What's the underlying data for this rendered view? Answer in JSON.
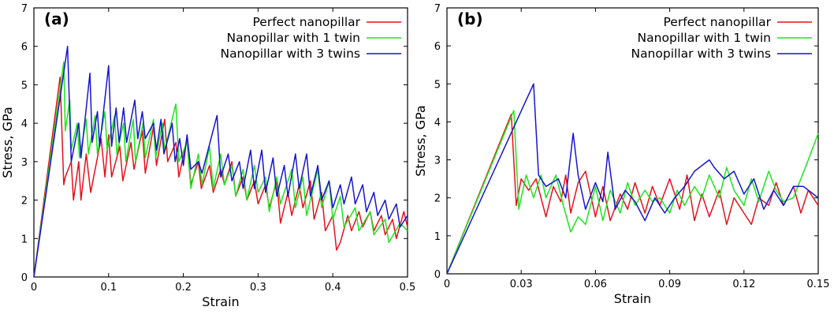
{
  "chart_data": [
    {
      "type": "line",
      "panel_label": "(a)",
      "xlabel": "Strain",
      "ylabel": "Stress, GPa",
      "xlim": [
        0,
        0.5
      ],
      "ylim": [
        0,
        7
      ],
      "xticks": [
        "0",
        "0.1",
        "0.2",
        "0.3",
        "0.4",
        "0.5"
      ],
      "yticks": [
        "0",
        "1",
        "2",
        "3",
        "4",
        "5",
        "6",
        "7"
      ],
      "legend": "top-right",
      "grid": false,
      "series": [
        {
          "name": "Perfect nanopillar",
          "color": "#e8101a",
          "x": [
            0,
            0.035,
            0.04,
            0.042,
            0.05,
            0.053,
            0.06,
            0.063,
            0.07,
            0.076,
            0.09,
            0.095,
            0.1,
            0.104,
            0.115,
            0.119,
            0.13,
            0.134,
            0.145,
            0.149,
            0.16,
            0.164,
            0.175,
            0.179,
            0.19,
            0.194,
            0.205,
            0.21,
            0.22,
            0.224,
            0.235,
            0.24,
            0.25,
            0.255,
            0.265,
            0.27,
            0.28,
            0.285,
            0.295,
            0.3,
            0.31,
            0.315,
            0.325,
            0.33,
            0.34,
            0.345,
            0.355,
            0.36,
            0.37,
            0.375,
            0.385,
            0.39,
            0.4,
            0.405,
            0.41,
            0.42,
            0.425,
            0.435,
            0.44,
            0.45,
            0.455,
            0.465,
            0.47,
            0.48,
            0.485,
            0.495,
            0.5
          ],
          "y": [
            0,
            5.2,
            2.4,
            2.6,
            3.0,
            2.0,
            3.0,
            2.0,
            3.2,
            2.2,
            3.6,
            2.6,
            3.7,
            2.6,
            3.4,
            2.5,
            3.5,
            2.8,
            3.8,
            2.7,
            3.9,
            2.9,
            4.1,
            3.0,
            3.5,
            2.6,
            3.6,
            2.4,
            3.0,
            2.3,
            2.9,
            2.2,
            2.8,
            2.4,
            3.0,
            2.1,
            2.6,
            2.0,
            2.5,
            1.9,
            2.4,
            1.8,
            2.5,
            1.4,
            2.2,
            1.6,
            2.4,
            1.8,
            2.5,
            1.5,
            2.2,
            1.2,
            1.6,
            0.7,
            0.9,
            1.6,
            1.2,
            1.7,
            1.3,
            1.7,
            1.2,
            1.6,
            1.1,
            1.5,
            1.0,
            1.7,
            1.3
          ]
        },
        {
          "name": "Nanopillar with 1 twin",
          "color": "#1ce61c",
          "x": [
            0,
            0.04,
            0.042,
            0.048,
            0.05,
            0.058,
            0.061,
            0.07,
            0.073,
            0.082,
            0.085,
            0.095,
            0.098,
            0.108,
            0.111,
            0.12,
            0.123,
            0.133,
            0.136,
            0.146,
            0.149,
            0.16,
            0.163,
            0.172,
            0.175,
            0.19,
            0.194,
            0.205,
            0.21,
            0.22,
            0.225,
            0.235,
            0.24,
            0.25,
            0.255,
            0.265,
            0.27,
            0.28,
            0.285,
            0.295,
            0.3,
            0.31,
            0.315,
            0.325,
            0.33,
            0.345,
            0.35,
            0.36,
            0.365,
            0.38,
            0.385,
            0.395,
            0.4,
            0.41,
            0.415,
            0.43,
            0.435,
            0.45,
            0.455,
            0.47,
            0.475,
            0.49,
            0.5
          ],
          "y": [
            0,
            5.6,
            3.8,
            4.6,
            3.3,
            4.0,
            3.1,
            4.1,
            3.2,
            4.2,
            3.2,
            4.3,
            3.3,
            4.2,
            3.2,
            4.0,
            3.0,
            4.1,
            3.0,
            4.0,
            3.1,
            4.1,
            3.1,
            4.0,
            3.3,
            4.5,
            3.0,
            3.5,
            2.3,
            3.2,
            2.4,
            3.4,
            2.3,
            3.2,
            2.4,
            2.9,
            2.1,
            2.8,
            2.0,
            2.9,
            2.2,
            2.6,
            1.7,
            2.6,
            1.9,
            2.8,
            1.8,
            2.6,
            1.6,
            2.8,
            1.8,
            2.5,
            1.5,
            2.1,
            1.3,
            1.8,
            1.2,
            1.7,
            1.1,
            1.5,
            0.9,
            1.4,
            1.2
          ]
        },
        {
          "name": "Nanopillar with 3 twins",
          "color": "#1515d0",
          "x": [
            0,
            0.045,
            0.05,
            0.052,
            0.06,
            0.063,
            0.075,
            0.078,
            0.085,
            0.088,
            0.1,
            0.104,
            0.11,
            0.114,
            0.12,
            0.124,
            0.135,
            0.139,
            0.145,
            0.149,
            0.16,
            0.164,
            0.17,
            0.174,
            0.185,
            0.189,
            0.195,
            0.2,
            0.205,
            0.21,
            0.22,
            0.225,
            0.245,
            0.25,
            0.26,
            0.265,
            0.275,
            0.28,
            0.29,
            0.295,
            0.305,
            0.31,
            0.32,
            0.325,
            0.335,
            0.34,
            0.35,
            0.355,
            0.365,
            0.37,
            0.38,
            0.385,
            0.395,
            0.4,
            0.41,
            0.415,
            0.425,
            0.43,
            0.44,
            0.445,
            0.455,
            0.46,
            0.47,
            0.475,
            0.485,
            0.49,
            0.5
          ],
          "y": [
            0,
            6.0,
            3.0,
            3.2,
            4.0,
            3.1,
            5.3,
            3.5,
            4.3,
            3.4,
            5.5,
            3.4,
            4.4,
            3.5,
            4.4,
            3.5,
            4.6,
            3.6,
            4.3,
            3.6,
            4.0,
            3.3,
            4.1,
            3.2,
            4.0,
            3.0,
            3.6,
            2.9,
            3.7,
            2.8,
            3.0,
            2.7,
            4.2,
            2.6,
            3.2,
            2.5,
            3.0,
            2.3,
            3.3,
            2.3,
            3.3,
            2.2,
            3.1,
            2.1,
            2.9,
            2.1,
            3.2,
            2.3,
            3.2,
            2.1,
            2.9,
            2.0,
            2.5,
            1.8,
            2.4,
            1.9,
            2.6,
            1.9,
            2.4,
            1.7,
            2.2,
            1.6,
            2.0,
            1.5,
            1.9,
            1.3,
            1.6
          ]
        }
      ]
    },
    {
      "type": "line",
      "panel_label": "(b)",
      "xlabel": "Strain",
      "ylabel": "Stress, GPa",
      "xlim": [
        0,
        0.15
      ],
      "ylim": [
        0,
        7
      ],
      "xticks": [
        "0",
        "0.03",
        "0.06",
        "0.09",
        "0.12",
        "0.15"
      ],
      "yticks": [
        "0",
        "1",
        "2",
        "3",
        "4",
        "5",
        "6",
        "7"
      ],
      "legend": "top-right",
      "grid": false,
      "series": [
        {
          "name": "Perfect nanopillar",
          "color": "#e8101a",
          "x": [
            0,
            0.026,
            0.028,
            0.03,
            0.033,
            0.036,
            0.04,
            0.043,
            0.046,
            0.048,
            0.05,
            0.053,
            0.056,
            0.06,
            0.063,
            0.066,
            0.07,
            0.073,
            0.076,
            0.08,
            0.083,
            0.086,
            0.09,
            0.094,
            0.097,
            0.1,
            0.103,
            0.106,
            0.11,
            0.113,
            0.116,
            0.12,
            0.123,
            0.126,
            0.13,
            0.133,
            0.136,
            0.14,
            0.143,
            0.146,
            0.15
          ],
          "y": [
            0,
            4.2,
            1.8,
            2.5,
            2.2,
            2.5,
            1.5,
            2.3,
            1.9,
            2.6,
            1.6,
            2.4,
            2.7,
            1.5,
            2.3,
            1.4,
            2.1,
            1.7,
            2.4,
            1.6,
            2.3,
            1.8,
            2.5,
            1.7,
            2.6,
            1.4,
            2.1,
            1.5,
            2.2,
            1.3,
            2.0,
            1.6,
            1.3,
            2.0,
            1.8,
            2.4,
            1.8,
            2.3,
            1.6,
            2.2,
            1.8
          ]
        },
        {
          "name": "Nanopillar with 1 twin",
          "color": "#1ce61c",
          "x": [
            0,
            0.027,
            0.029,
            0.032,
            0.035,
            0.038,
            0.04,
            0.044,
            0.047,
            0.05,
            0.053,
            0.056,
            0.06,
            0.063,
            0.066,
            0.07,
            0.073,
            0.076,
            0.08,
            0.083,
            0.086,
            0.09,
            0.093,
            0.096,
            0.1,
            0.103,
            0.106,
            0.11,
            0.113,
            0.116,
            0.12,
            0.123,
            0.126,
            0.13,
            0.133,
            0.136,
            0.14,
            0.143,
            0.146,
            0.15
          ],
          "y": [
            0,
            4.3,
            1.7,
            2.6,
            2.0,
            2.6,
            2.0,
            2.6,
            1.8,
            1.1,
            1.5,
            1.3,
            2.3,
            1.4,
            2.2,
            1.6,
            2.4,
            1.8,
            2.2,
            1.9,
            2.0,
            1.6,
            2.2,
            1.8,
            2.3,
            2.0,
            2.6,
            2.0,
            2.8,
            2.2,
            1.8,
            2.5,
            1.9,
            2.7,
            2.2,
            1.9,
            2.0,
            2.5,
            3.0,
            3.7
          ]
        },
        {
          "name": "Nanopillar with 3 twins",
          "color": "#1515d0",
          "x": [
            0,
            0.035,
            0.037,
            0.04,
            0.045,
            0.048,
            0.051,
            0.053,
            0.056,
            0.06,
            0.063,
            0.065,
            0.068,
            0.072,
            0.076,
            0.08,
            0.084,
            0.088,
            0.092,
            0.096,
            0.1,
            0.104,
            0.106,
            0.108,
            0.112,
            0.116,
            0.12,
            0.124,
            0.128,
            0.132,
            0.136,
            0.14,
            0.144,
            0.148,
            0.15
          ],
          "y": [
            0,
            5.0,
            2.6,
            2.3,
            2.5,
            2.0,
            3.7,
            2.6,
            1.7,
            2.4,
            1.9,
            3.2,
            1.7,
            2.2,
            1.9,
            1.4,
            2.0,
            1.6,
            2.0,
            2.3,
            2.7,
            2.9,
            3.0,
            2.8,
            2.5,
            2.7,
            2.1,
            2.5,
            1.7,
            2.2,
            1.8,
            2.3,
            2.3,
            2.1,
            2.0
          ]
        }
      ]
    }
  ]
}
